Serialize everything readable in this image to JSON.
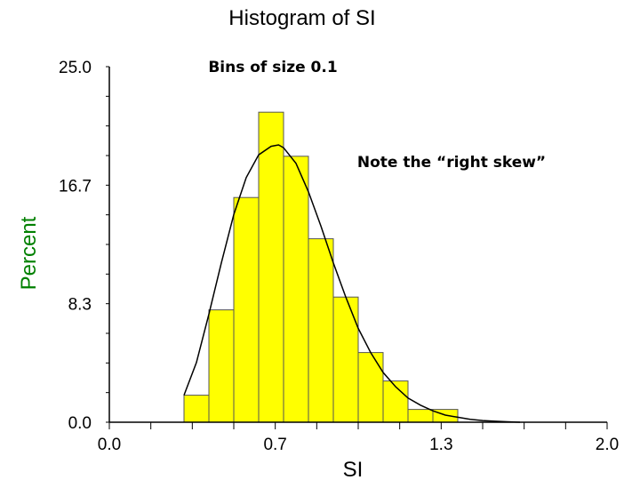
{
  "chart_data": {
    "type": "bar",
    "title": "Histogram of SI",
    "xlabel": "SI",
    "ylabel": "Percent",
    "xlim": [
      0.0,
      2.0
    ],
    "ylim": [
      0.0,
      25.0
    ],
    "x_ticks": [
      "0.0",
      "0.7",
      "1.3",
      "2.0"
    ],
    "x_tick_values": [
      0.0,
      0.6667,
      1.3333,
      2.0
    ],
    "y_ticks": [
      "0.0",
      "8.3",
      "16.7",
      "25.0"
    ],
    "y_tick_values": [
      0.0,
      8.3333,
      16.6667,
      25.0
    ],
    "bin_width": 0.1,
    "bins": [
      {
        "start": 0.3,
        "end": 0.4,
        "value": 1.9
      },
      {
        "start": 0.4,
        "end": 0.5,
        "value": 7.9
      },
      {
        "start": 0.5,
        "end": 0.6,
        "value": 15.8
      },
      {
        "start": 0.6,
        "end": 0.7,
        "value": 21.8
      },
      {
        "start": 0.7,
        "end": 0.8,
        "value": 18.7
      },
      {
        "start": 0.8,
        "end": 0.9,
        "value": 12.9
      },
      {
        "start": 0.9,
        "end": 1.0,
        "value": 8.8
      },
      {
        "start": 1.0,
        "end": 1.1,
        "value": 4.9
      },
      {
        "start": 1.1,
        "end": 1.2,
        "value": 2.9
      },
      {
        "start": 1.2,
        "end": 1.3,
        "value": 0.9
      },
      {
        "start": 1.3,
        "end": 1.4,
        "value": 0.9
      }
    ],
    "fit_curve": {
      "x": [
        0.3,
        0.35,
        0.4,
        0.45,
        0.5,
        0.55,
        0.6,
        0.65,
        0.68,
        0.7,
        0.75,
        0.8,
        0.85,
        0.9,
        0.95,
        1.0,
        1.05,
        1.1,
        1.15,
        1.2,
        1.25,
        1.3,
        1.35,
        1.4,
        1.45,
        1.5,
        1.55,
        1.6,
        1.65
      ],
      "y": [
        1.9,
        4.2,
        7.6,
        11.2,
        14.6,
        17.2,
        18.8,
        19.4,
        19.5,
        19.3,
        18.2,
        16.2,
        13.8,
        11.2,
        8.8,
        6.6,
        4.9,
        3.5,
        2.5,
        1.7,
        1.2,
        0.8,
        0.5,
        0.35,
        0.2,
        0.12,
        0.07,
        0.03,
        0.0
      ]
    },
    "annotations": [
      "Bins of size 0.1",
      "Note the “right skew”"
    ],
    "grid": false,
    "legend": "none",
    "colors": {
      "bar_fill": "#ffff00",
      "bar_stroke": "#555555",
      "curve": "#000000",
      "axis": "#000000",
      "ylabel": "#008000"
    }
  }
}
